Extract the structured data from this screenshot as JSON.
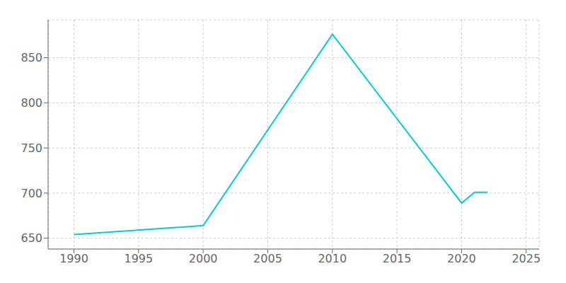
{
  "chart_data": {
    "type": "line",
    "x": [
      1990,
      2000,
      2010,
      2020,
      2021,
      2022
    ],
    "values": [
      654,
      664,
      876,
      689,
      701,
      701
    ],
    "color": "#00CED1",
    "xlim": [
      1988,
      2026
    ],
    "xticks": [
      1990,
      1995,
      2000,
      2005,
      2010,
      2015,
      2020,
      2025
    ],
    "ylim": [
      638,
      892
    ],
    "yticks": [
      650,
      700,
      750,
      800,
      850
    ],
    "grid": true
  }
}
